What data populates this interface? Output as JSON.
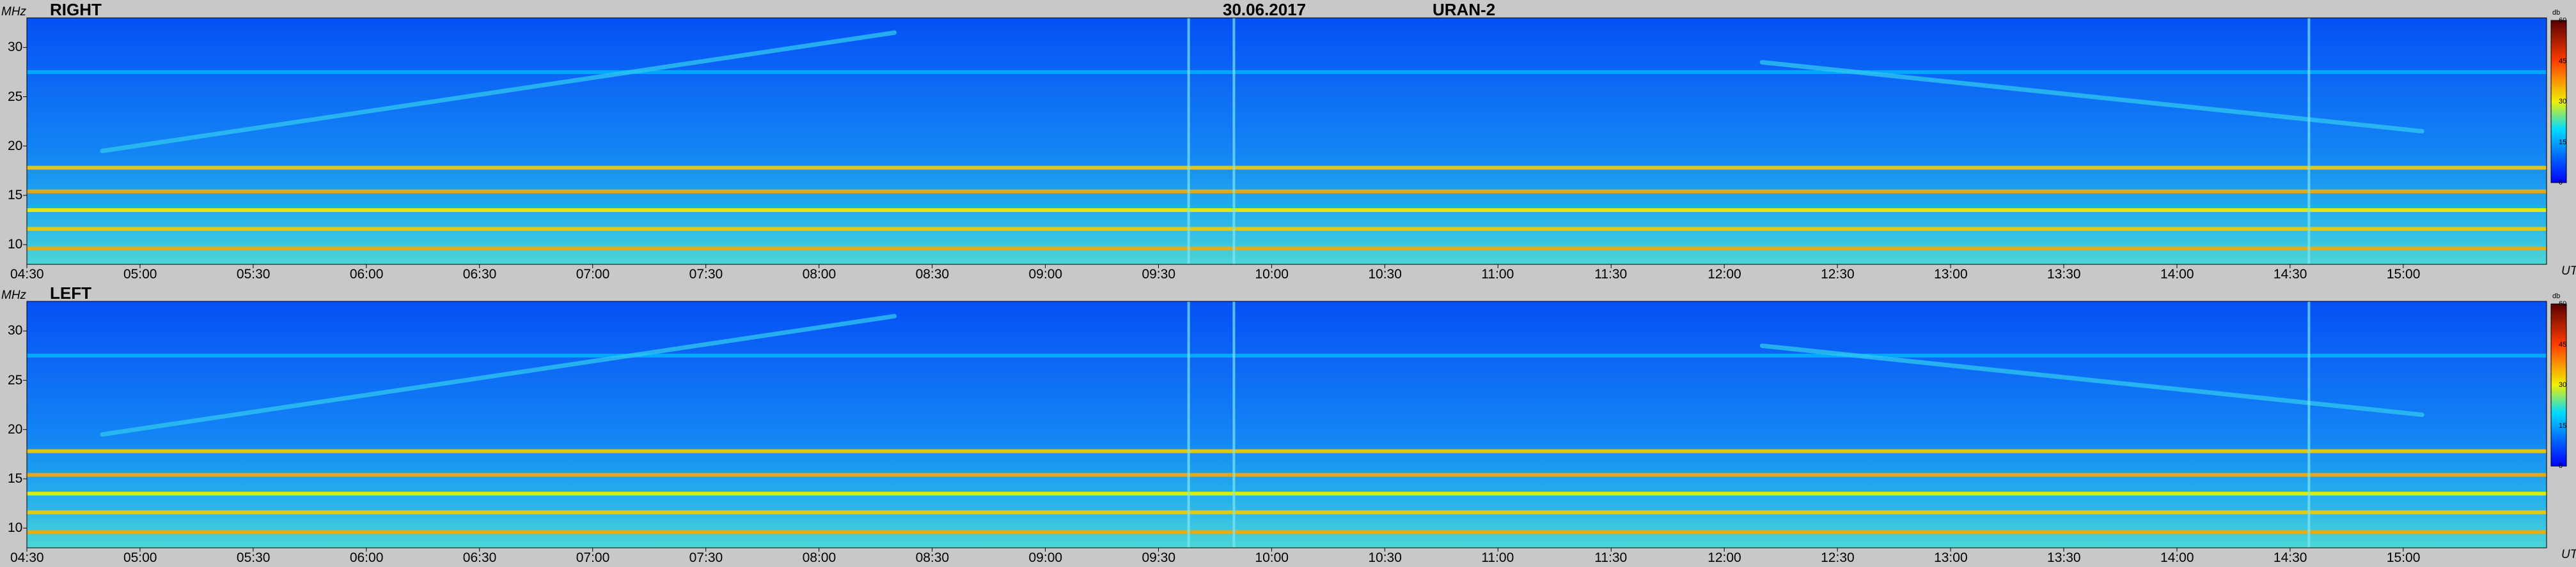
{
  "header": {
    "date": "30.06.2017",
    "instrument": "URAN-2"
  },
  "chart_data": [
    {
      "type": "heatmap",
      "title": "RIGHT",
      "ylabel": "MHz",
      "xlabel": "UT",
      "colorbar_unit": "db",
      "colorbar_ticks": [
        "0",
        "15",
        "30",
        "45",
        "60"
      ],
      "colorbar_range": [
        0,
        60
      ],
      "ylim": [
        8,
        33
      ],
      "yticks": [
        "10",
        "15",
        "20",
        "25",
        "30"
      ],
      "xlim": [
        "04:30",
        "15:38"
      ],
      "xticks": [
        "04:30",
        "05:00",
        "05:30",
        "06:00",
        "06:30",
        "07:00",
        "07:30",
        "08:00",
        "08:30",
        "09:00",
        "09:30",
        "10:00",
        "10:30",
        "11:00",
        "11:30",
        "12:00",
        "12:30",
        "13:00",
        "13:30",
        "14:00",
        "14:30",
        "15:00"
      ],
      "background_level_db": 8,
      "horizontal_bands_mhz": [
        {
          "freq": 9.6,
          "db": 36
        },
        {
          "freq": 11.6,
          "db": 33
        },
        {
          "freq": 13.5,
          "db": 30
        },
        {
          "freq": 15.4,
          "db": 36
        },
        {
          "freq": 17.8,
          "db": 33
        },
        {
          "freq": 27.5,
          "db": 16
        }
      ],
      "drifting_features": [
        {
          "start": [
            "04:50",
            19.5
          ],
          "end": [
            "08:20",
            31.5
          ]
        },
        {
          "start": [
            "12:10",
            28.5
          ],
          "end": [
            "15:05",
            21.5
          ]
        }
      ],
      "vertical_features": [
        "09:38",
        "09:50",
        "14:35"
      ]
    },
    {
      "type": "heatmap",
      "title": "LEFT",
      "ylabel": "MHz",
      "xlabel": "UT",
      "colorbar_unit": "db",
      "colorbar_ticks": [
        "0",
        "15",
        "30",
        "45",
        "60"
      ],
      "colorbar_range": [
        0,
        60
      ],
      "ylim": [
        8,
        33
      ],
      "yticks": [
        "10",
        "15",
        "20",
        "25",
        "30"
      ],
      "xlim": [
        "04:30",
        "15:38"
      ],
      "xticks": [
        "04:30",
        "05:00",
        "05:30",
        "06:00",
        "06:30",
        "07:00",
        "07:30",
        "08:00",
        "08:30",
        "09:00",
        "09:30",
        "10:00",
        "10:30",
        "11:00",
        "11:30",
        "12:00",
        "12:30",
        "13:00",
        "13:30",
        "14:00",
        "14:30",
        "15:00"
      ],
      "background_level_db": 8,
      "horizontal_bands_mhz": [
        {
          "freq": 9.6,
          "db": 36
        },
        {
          "freq": 11.6,
          "db": 33
        },
        {
          "freq": 13.5,
          "db": 30
        },
        {
          "freq": 15.4,
          "db": 36
        },
        {
          "freq": 17.8,
          "db": 33
        },
        {
          "freq": 27.5,
          "db": 16
        }
      ],
      "drifting_features": [
        {
          "start": [
            "04:50",
            19.5
          ],
          "end": [
            "08:20",
            31.5
          ]
        },
        {
          "start": [
            "12:10",
            28.5
          ],
          "end": [
            "15:05",
            21.5
          ]
        }
      ],
      "vertical_features": [
        "09:38",
        "09:50",
        "14:35"
      ]
    }
  ]
}
